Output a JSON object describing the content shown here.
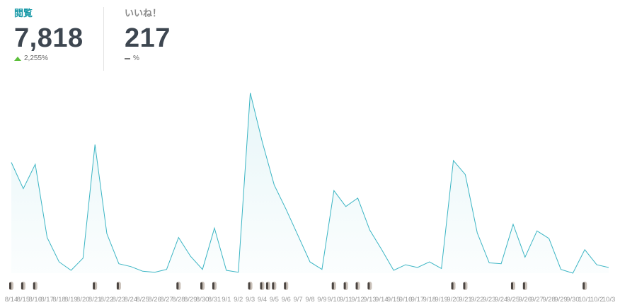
{
  "stats": {
    "views": {
      "label": "閲覧",
      "value": "7,818",
      "change": "2,255%"
    },
    "likes": {
      "label": "いいね！",
      "value": "217",
      "change": "%"
    }
  },
  "colors": {
    "accent": "#1a9aa8",
    "line": "#3bb5c4",
    "up": "#5cbf3a"
  },
  "chart_data": {
    "type": "area",
    "categories": [
      "8/14",
      "8/15",
      "8/16",
      "8/17",
      "8/18",
      "8/19",
      "8/20",
      "8/21",
      "8/22",
      "8/23",
      "8/24",
      "8/25",
      "8/26",
      "8/27",
      "8/28",
      "8/29",
      "8/30",
      "8/31",
      "9/1",
      "9/2",
      "9/3",
      "9/4",
      "9/5",
      "9/6",
      "9/7",
      "9/8",
      "9/9",
      "9/10",
      "9/11",
      "9/12",
      "9/13",
      "9/14",
      "9/15",
      "9/16",
      "9/17",
      "9/18",
      "9/19",
      "9/20",
      "9/21",
      "9/22",
      "9/23",
      "9/24",
      "9/25",
      "9/26",
      "9/27",
      "9/28",
      "9/29",
      "9/30",
      "10/1",
      "10/2",
      "10/3"
    ],
    "tick_labels": [
      "8/14",
      "8/15",
      "8/16",
      "8/17",
      "8/18",
      "8/19",
      "8/20",
      "8/21",
      "8/22",
      "8/23",
      "8/24",
      "8/25",
      "8/26",
      "8/27",
      "8/28",
      "8/29",
      "8/30",
      "8/31",
      "9/1",
      "9/2",
      "9/3",
      "9/4",
      "9/5",
      "9/6",
      "9/7",
      "9/8",
      "9/9",
      "9/10",
      "9/11",
      "9/12",
      "9/13",
      "9/14",
      "9/15",
      "9/16",
      "9/17",
      "9/18",
      "9/19",
      "9/20",
      "9/21",
      "9/22",
      "9/23",
      "9/24",
      "9/25",
      "9/26",
      "9/27",
      "9/28",
      "9/29",
      "9/30",
      "10/1",
      "10/2",
      "10/3"
    ],
    "values": [
      590,
      450,
      580,
      190,
      60,
      15,
      80,
      685,
      210,
      50,
      35,
      10,
      5,
      20,
      190,
      90,
      20,
      240,
      15,
      5,
      960,
      700,
      470,
      340,
      200,
      60,
      20,
      440,
      355,
      400,
      230,
      125,
      15,
      45,
      30,
      60,
      25,
      600,
      525,
      215,
      55,
      50,
      260,
      85,
      225,
      185,
      20,
      0,
      125,
      45,
      30
    ],
    "ylim": [
      0,
      980
    ],
    "grid": false,
    "legend": "none"
  }
}
